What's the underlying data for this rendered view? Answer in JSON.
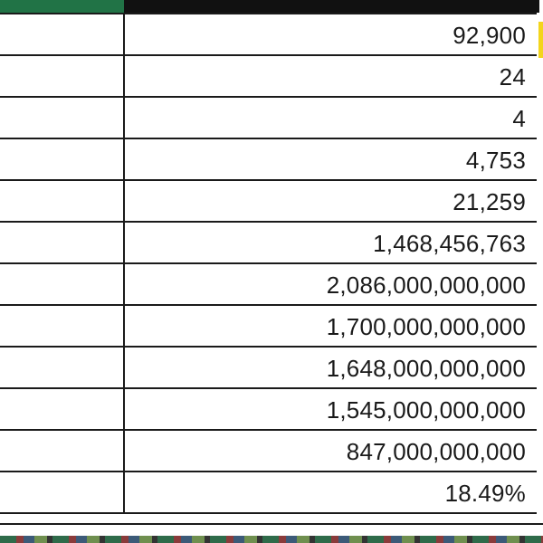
{
  "sheet": {
    "accent_color": "#217346",
    "header_dark_color": "#111111",
    "rows": [
      {
        "value": "92,900"
      },
      {
        "value": "24"
      },
      {
        "value": "4"
      },
      {
        "value": "4,753"
      },
      {
        "value": "21,259"
      },
      {
        "value": "1,468,456,763"
      },
      {
        "value": "2,086,000,000,000"
      },
      {
        "value": "1,700,000,000,000"
      },
      {
        "value": "1,648,000,000,000"
      },
      {
        "value": "1,545,000,000,000"
      },
      {
        "value": "847,000,000,000"
      },
      {
        "value": "18.49%"
      }
    ]
  }
}
